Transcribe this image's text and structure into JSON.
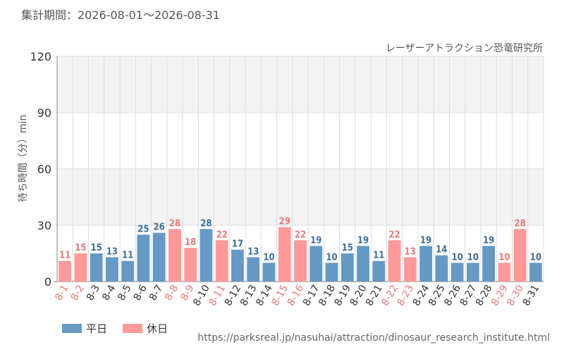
{
  "period_label": "集計期間：2026-08-01～2026-08-31",
  "facility": "レーザーアトラクション恐竜研究所",
  "source_url": "https://parksreal.jp/nasuhai/attraction/dinosaur_research_institute.html",
  "colors": {
    "weekday": "#6699c4",
    "holiday": "#ff9999",
    "weekday_text": "#3d6f99",
    "holiday_text": "#e87a7a",
    "band": "#f3f3f3",
    "grid": "#dddddd",
    "axis": "#888888"
  },
  "chart_data": {
    "type": "bar",
    "ylabel": "待ち時間（分）min",
    "ylim": [
      0,
      120
    ],
    "yticks": [
      0,
      30,
      60,
      90,
      120
    ],
    "grid": true,
    "legend_placement": "bottom-left",
    "series": [
      {
        "name": "平日",
        "key": "weekday"
      },
      {
        "name": "休日",
        "key": "holiday"
      }
    ],
    "categories": [
      "8-1",
      "8-2",
      "8-3",
      "8-4",
      "8-5",
      "8-6",
      "8-7",
      "8-8",
      "8-9",
      "8-10",
      "8-11",
      "8-12",
      "8-13",
      "8-14",
      "8-15",
      "8-16",
      "8-17",
      "8-18",
      "8-19",
      "8-20",
      "8-21",
      "8-22",
      "8-23",
      "8-24",
      "8-25",
      "8-26",
      "8-27",
      "8-28",
      "8-29",
      "8-30",
      "8-31"
    ],
    "values": [
      11,
      15,
      15,
      13,
      11,
      25,
      26,
      28,
      18,
      28,
      22,
      17,
      13,
      10,
      29,
      22,
      19,
      10,
      15,
      19,
      11,
      22,
      13,
      19,
      14,
      10,
      10,
      19,
      10,
      28,
      10
    ],
    "day_types": [
      "holiday",
      "holiday",
      "weekday",
      "weekday",
      "weekday",
      "weekday",
      "weekday",
      "holiday",
      "holiday",
      "weekday",
      "holiday",
      "weekday",
      "weekday",
      "weekday",
      "holiday",
      "holiday",
      "weekday",
      "weekday",
      "weekday",
      "weekday",
      "weekday",
      "holiday",
      "holiday",
      "weekday",
      "weekday",
      "weekday",
      "weekday",
      "weekday",
      "holiday",
      "holiday",
      "weekday"
    ]
  }
}
